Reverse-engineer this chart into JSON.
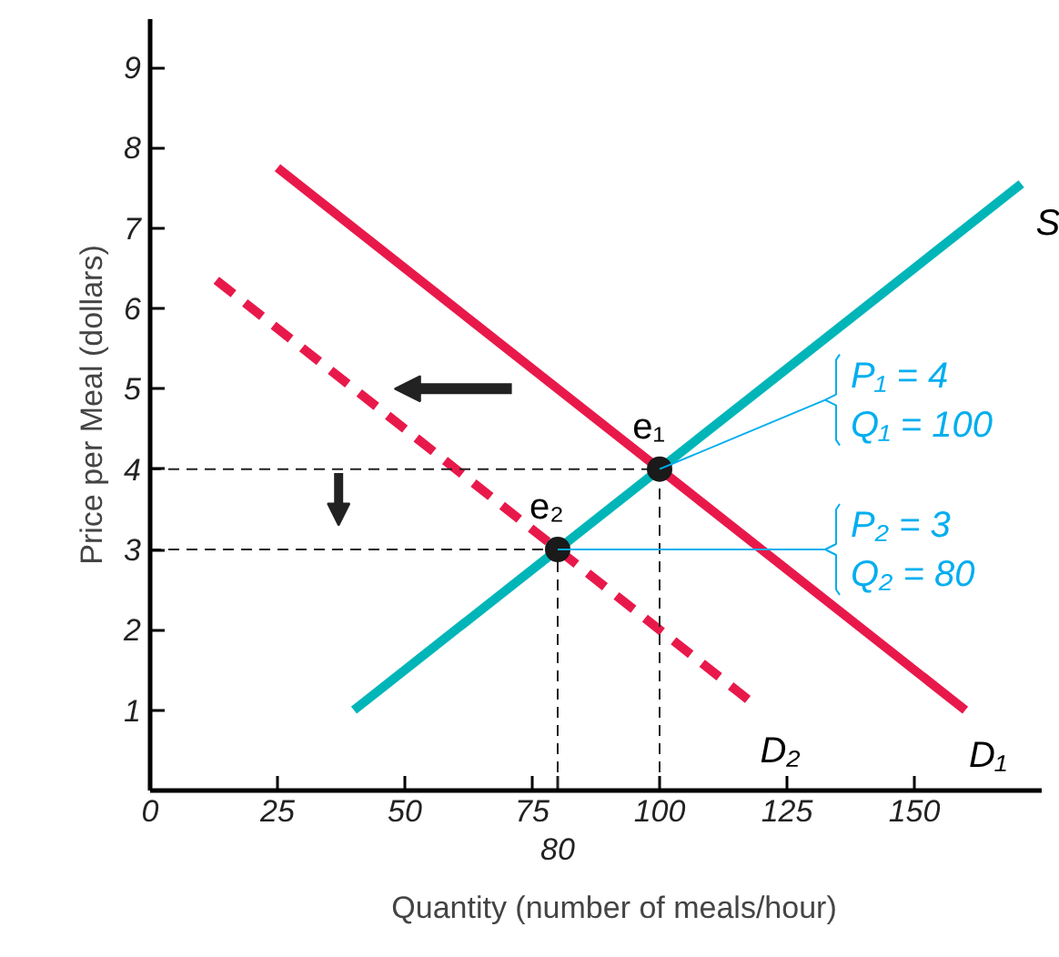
{
  "chart_data": {
    "type": "line",
    "xlabel": "Quantity (number of meals/hour)",
    "ylabel": "Price per Meal (dollars)",
    "xlim": [
      0,
      175
    ],
    "ylim": [
      0,
      9.6
    ],
    "xticks": [
      0,
      25,
      50,
      75,
      100,
      125,
      150
    ],
    "yticks": [
      1,
      2,
      3,
      4,
      5,
      6,
      7,
      8,
      9
    ],
    "grid": false,
    "series": [
      {
        "name": "S",
        "color": "#00b5b8",
        "x": [
          40,
          171
        ],
        "values": [
          1,
          7.55
        ],
        "line_style": "solid"
      },
      {
        "name": "D₁",
        "color": "#e8194a",
        "x": [
          25,
          160
        ],
        "values": [
          7.75,
          1
        ],
        "line_style": "solid"
      },
      {
        "name": "D₂",
        "color": "#e8194a",
        "x": [
          13,
          119
        ],
        "values": [
          6.35,
          1.05
        ],
        "line_style": "dashed"
      },
      {
        "type": "scatter",
        "color": "#1a1a1a",
        "x": [
          100,
          80
        ],
        "values": [
          4,
          3
        ],
        "marker": "circle"
      }
    ],
    "annotations": [
      "e₁",
      "e₂",
      {
        "text": "P₁ = 4\nQ₁ = 100",
        "x": 100,
        "y": 4
      },
      {
        "text": "P₂ = 3\nQ₂ = 80",
        "x": 80,
        "y": 3
      },
      "80"
    ]
  }
}
